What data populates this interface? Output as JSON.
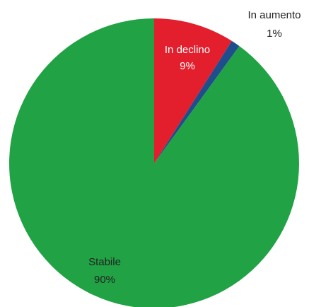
{
  "chart_data": {
    "type": "pie",
    "title": "",
    "start_angle_deg": 0,
    "direction": "clockwise",
    "slices": [
      {
        "label": "In declino",
        "value": 9,
        "value_label": "9%",
        "color": "#e31e2d",
        "label_color": "#ffffff"
      },
      {
        "label": "In aumento",
        "value": 1,
        "value_label": "1%",
        "color": "#1f4e8c",
        "label_color": "#222222"
      },
      {
        "label": "Stabile",
        "value": 90,
        "value_label": "90%",
        "color": "#21a244",
        "label_color": "#222222"
      }
    ]
  }
}
